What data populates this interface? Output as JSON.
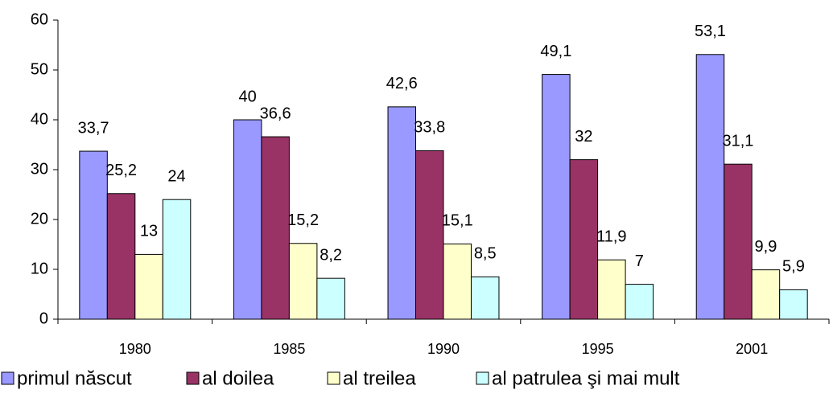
{
  "chart_data": {
    "type": "bar",
    "categories": [
      "1980",
      "1985",
      "1990",
      "1995",
      "2001"
    ],
    "series": [
      {
        "name": "primul născut",
        "color": "#9999ff",
        "values": [
          33.7,
          40,
          42.6,
          49.1,
          53.1
        ],
        "value_labels": [
          "33,7",
          "40",
          "42,6",
          "49,1",
          "53,1"
        ]
      },
      {
        "name": "al doilea",
        "color": "#993366",
        "values": [
          25.2,
          36.6,
          33.8,
          32,
          31.1
        ],
        "value_labels": [
          "25,2",
          "36,6",
          "33,8",
          "32",
          "31,1"
        ]
      },
      {
        "name": "al treilea",
        "color": "#ffffcc",
        "values": [
          13,
          15.2,
          15.1,
          11.9,
          9.9
        ],
        "value_labels": [
          "13",
          "15,2",
          "15,1",
          "11,9",
          "9,9"
        ]
      },
      {
        "name": "al patrulea şi mai mult",
        "color": "#ccffff",
        "values": [
          24,
          8.2,
          8.5,
          7,
          5.9
        ],
        "value_labels": [
          "24",
          "8,2",
          "8,5",
          "7",
          "5,9"
        ]
      }
    ],
    "ylim": [
      0,
      60
    ],
    "yticks": [
      0,
      10,
      20,
      30,
      40,
      50,
      60
    ],
    "grid": false,
    "legend": "bottom"
  }
}
